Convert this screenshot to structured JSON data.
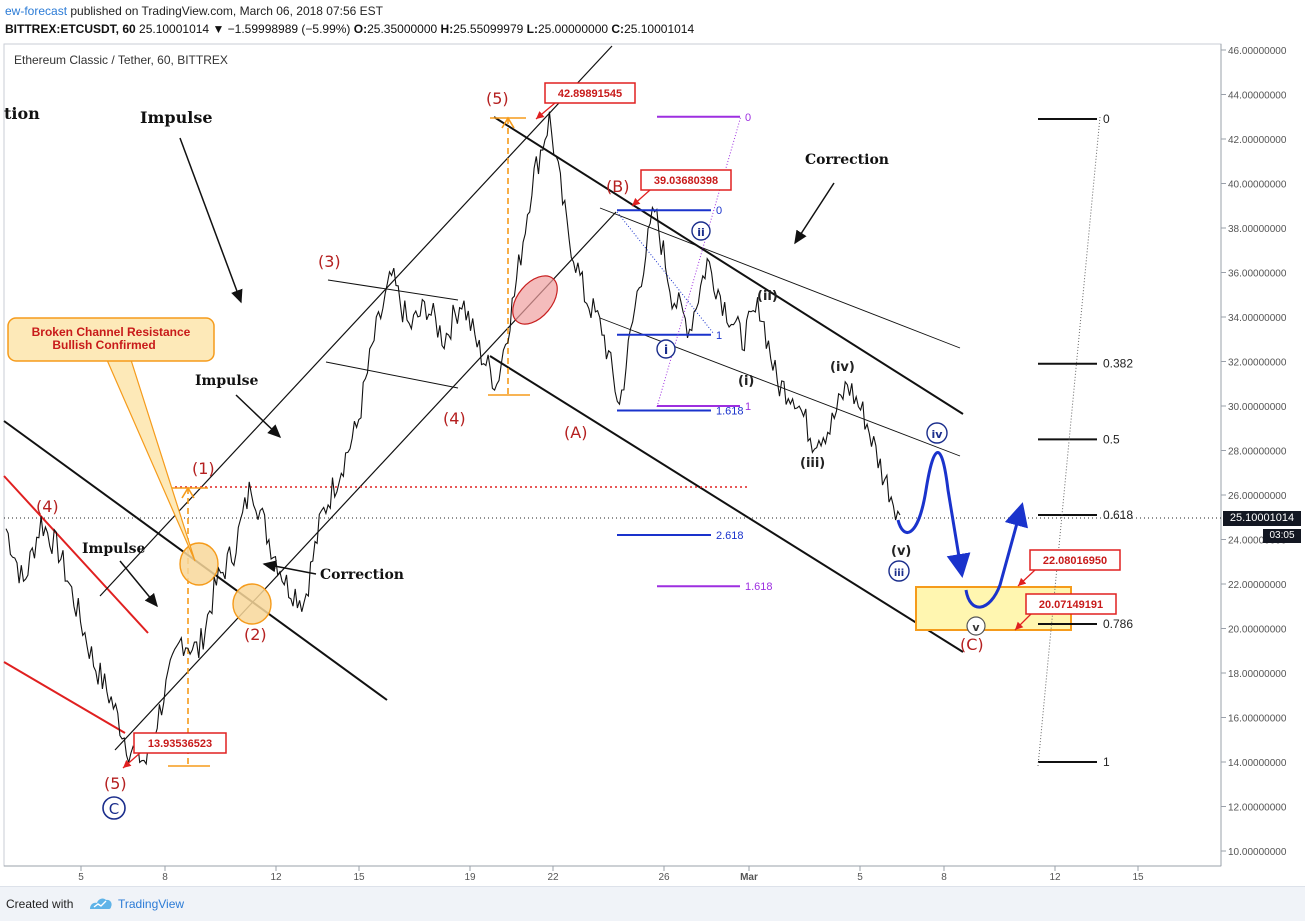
{
  "header": {
    "author": "ew-forecast",
    "published": " published on TradingView.com, March 06, 2018 07:56 EST",
    "symbol": "BITTREX:ETCUSDT, 60",
    "last": "25.10001014",
    "change": "▼ −1.59998989 (−5.99%)",
    "ohlc_o_label": "O:",
    "ohlc_o": "25.35000000",
    "ohlc_h_label": "H:",
    "ohlc_h": "25.55099979",
    "ohlc_l_label": "L:",
    "ohlc_l": "25.00000000",
    "ohlc_c_label": "C:",
    "ohlc_c": "25.10001014"
  },
  "footer": {
    "created_with": "Created with",
    "brand": "TradingView"
  },
  "price_tag": "25.10001014",
  "countdown": "03:05",
  "chart_data": {
    "type": "line",
    "title": "Ethereum Classic / Tether, 60, BITTREX",
    "ylim": [
      9.5,
      46.5
    ],
    "y_ticks": [
      "46.00000000",
      "44.00000000",
      "42.00000000",
      "40.00000000",
      "38.00000000",
      "36.00000000",
      "34.00000000",
      "32.00000000",
      "30.00000000",
      "28.00000000",
      "26.00000000",
      "24.00000000",
      "22.00000000",
      "20.00000000",
      "18.00000000",
      "16.00000000",
      "14.00000000",
      "12.00000000",
      "10.00000000"
    ],
    "x_ticks": [
      "5",
      "8",
      "12",
      "15",
      "19",
      "22",
      "26",
      "Mar",
      "5",
      "8",
      "12",
      "15"
    ],
    "series": [
      {
        "values": [
          24.5,
          22.0,
          24.8,
          23.5,
          21.0,
          18.5,
          16.8,
          14.6,
          14.0,
          17.0,
          19.5,
          19.0,
          22.0,
          23.5,
          26.5,
          24.0,
          22.0,
          21.2,
          25.0,
          27.0,
          29.0,
          33.0,
          35.8,
          33.5,
          34.5,
          33.0,
          34.8,
          32.5,
          31.0,
          35.0,
          40.0,
          42.9,
          38.0,
          35.0,
          33.5,
          30.0,
          35.0,
          38.8,
          35.0,
          33.5,
          36.5,
          34.5,
          33.0,
          34.5,
          31.0,
          30.5,
          28.5,
          29.0,
          31.0,
          29.5,
          27.0,
          25.1
        ]
      }
    ],
    "wave_labels": [
      "(4)",
      "Impulse",
      "(1)",
      "(2)",
      "(3)",
      "(4)",
      "(5)",
      "(A)",
      "(B)",
      "(C)",
      "(5)",
      "(i)",
      "(ii)",
      "(iii)",
      "(iv)",
      "(v)",
      "i",
      "ii",
      "iii",
      "iv",
      "v",
      "C"
    ],
    "annotations": [
      "Impulse",
      "Impulse",
      "Impulse",
      "Correction",
      "Correction",
      "tion",
      "Broken Channel Resistance",
      "Bullish Confirmed"
    ],
    "price_callouts": [
      "42.89891545",
      "39.03680398",
      "13.93536523",
      "22.08016950",
      "20.07149191"
    ],
    "fib_retracement": [
      {
        "label": "0",
        "value": 42.9
      },
      {
        "label": "0.382",
        "value": 31.9
      },
      {
        "label": "0.5",
        "value": 28.5
      },
      {
        "label": "0.618",
        "value": 25.1
      },
      {
        "label": "0.786",
        "value": 20.2
      },
      {
        "label": "1",
        "value": 14.0
      }
    ],
    "fib_extension": [
      {
        "label": "0",
        "value": 38.8
      },
      {
        "label": "1",
        "value": 33.2
      },
      {
        "label": "1.618",
        "value": 29.8
      },
      {
        "label": "2.618",
        "value": 24.2
      }
    ],
    "fib_extension_purple": [
      {
        "label": "0",
        "value": 43.0
      },
      {
        "label": "1",
        "value": 30.0
      },
      {
        "label": "1.618",
        "value": 21.9
      }
    ],
    "colors": {
      "price": "#111111",
      "channel": "#000000",
      "red_line": "#e02020",
      "dotted_red": "#e02020",
      "orange": "#f59b1b",
      "zone_fill": "#fff6b0",
      "projection": "#1a33cc",
      "fib_blue": "#1a33cc",
      "fib_purple": "#9d2fe0",
      "label_red": "#b52020",
      "label_blue": "#1a2d8c",
      "callout_border": "#e02020"
    },
    "grid": false,
    "legend": "none"
  }
}
